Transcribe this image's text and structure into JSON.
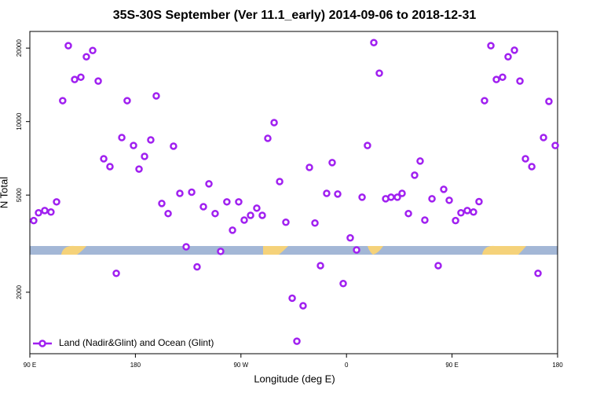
{
  "chart_data": {
    "type": "scatter",
    "title": "35S-30S September (Ver 11.1_early)   2014-09-06 to 2018-12-31",
    "x_label": "Longitude (deg E)",
    "y_label": "N Total",
    "xlim": [
      90,
      540
    ],
    "xticks": [
      {
        "value": 90,
        "label": "90 E"
      },
      {
        "value": 180,
        "label": "180"
      },
      {
        "value": 270,
        "label": "90 W"
      },
      {
        "value": 360,
        "label": "0"
      },
      {
        "value": 450,
        "label": "90 E"
      },
      {
        "value": 540,
        "label": "180"
      }
    ],
    "ylim": [
      1120,
      23400
    ],
    "yticks": [
      2000,
      5000,
      10000,
      20000
    ],
    "log_y": true,
    "legend": "bottom-left",
    "x": [
      93.3,
      97.4,
      102.7,
      108.0,
      112.8,
      118.0,
      122.8,
      128.2,
      133.5,
      138.2,
      143.6,
      148.3,
      153.0,
      158.3,
      163.7,
      168.4,
      173.0,
      178.4,
      183.1,
      187.8,
      193.1,
      197.8,
      202.5,
      207.9,
      212.5,
      217.9,
      223.3,
      228.0,
      232.6,
      238.0,
      242.7,
      248.0,
      252.7,
      258.0,
      262.8,
      268.1,
      272.8,
      278.2,
      283.5,
      288.2,
      292.9,
      298.3,
      303.0,
      308.3,
      313.7,
      317.7,
      323.0,
      328.4,
      333.1,
      337.8,
      343.1,
      347.8,
      352.5,
      357.2,
      363.2,
      368.6,
      373.3,
      377.9,
      383.3,
      388.0,
      393.4,
      398.0,
      403.4,
      407.4,
      412.8,
      418.1,
      422.8,
      426.8,
      432.9,
      438.2,
      442.9,
      447.6,
      453.0,
      457.6,
      463.0,
      468.3,
      473.0,
      477.7,
      483.1,
      487.8,
      493.1,
      497.8,
      503.2,
      507.9,
      512.6,
      518.0,
      523.3,
      528.0,
      532.6,
      538.0
    ],
    "series": [
      {
        "name": "Land (Nadir&Glint) and Ocean (Glint)",
        "color": "#a020f0",
        "values": [
          3930,
          4230,
          4320,
          4260,
          4690,
          12180,
          20460,
          14870,
          15200,
          18430,
          19550,
          14650,
          7040,
          6540,
          2390,
          8600,
          12180,
          7980,
          6390,
          7200,
          8410,
          12740,
          4620,
          4200,
          7930,
          5080,
          3070,
          5140,
          2540,
          4480,
          5560,
          4200,
          2940,
          4690,
          3590,
          4690,
          3950,
          4130,
          4420,
          4130,
          8540,
          9900,
          5680,
          3870,
          1890,
          1260,
          1760,
          6490,
          3840,
          2570,
          5080,
          6790,
          5050,
          2170,
          3340,
          2980,
          4900,
          7980,
          21060,
          15780,
          4830,
          4900,
          4900,
          5080,
          4200,
          6030,
          6890,
          3950,
          4830,
          2570,
          5280,
          4760,
          3930,
          4230,
          4320,
          4260,
          4700,
          12180,
          20460,
          14870,
          15200,
          18430,
          19600,
          14650,
          7040,
          6540,
          2390,
          8600,
          12100,
          7980
        ]
      }
    ]
  }
}
